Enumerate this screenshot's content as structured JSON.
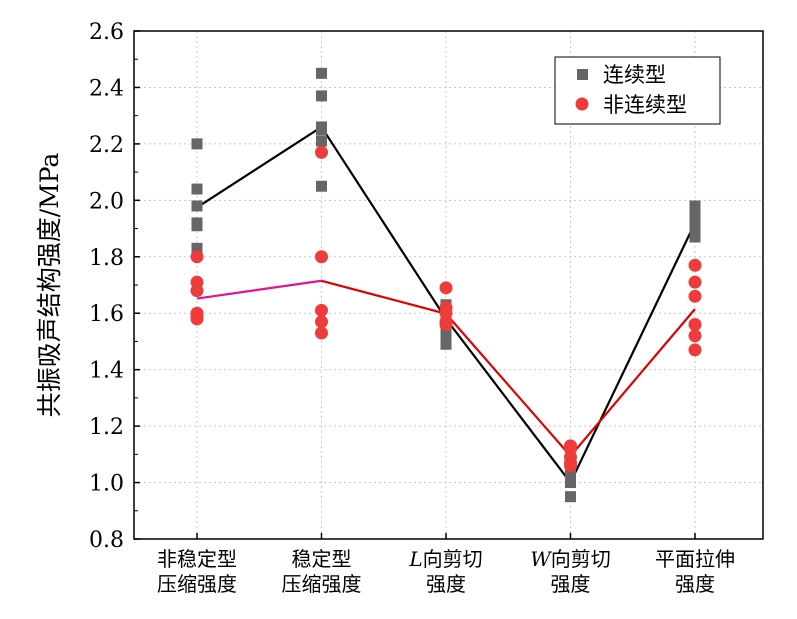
{
  "chart_data": {
    "type": "scatter",
    "ylabel": "共振吸声结构强度/MPa",
    "xlabel": "",
    "ylim": [
      0.8,
      2.6
    ],
    "yticks": [
      "0.8",
      "1.0",
      "1.2",
      "1.4",
      "1.6",
      "1.8",
      "2.0",
      "2.2",
      "2.4",
      "2.6"
    ],
    "categories": [
      {
        "lines": [
          "非稳定型",
          "压缩强度"
        ],
        "italic_prefix": ""
      },
      {
        "lines": [
          "稳定型",
          "压缩强度"
        ],
        "italic_prefix": ""
      },
      {
        "lines": [
          "向剪切",
          "强度"
        ],
        "italic_prefix": "L"
      },
      {
        "lines": [
          "向剪切",
          "强度"
        ],
        "italic_prefix": "W"
      },
      {
        "lines": [
          "平面拉伸",
          "强度"
        ],
        "italic_prefix": ""
      }
    ],
    "grid": true,
    "legend_position": "top-right",
    "series": [
      {
        "name": "连续型",
        "marker": "square",
        "marker_color": "#666666",
        "line_color": "#000000",
        "points": [
          [
            2.2,
            2.04,
            1.98,
            1.92,
            1.91,
            1.83
          ],
          [
            2.45,
            2.37,
            2.26,
            2.25,
            2.21,
            2.05
          ],
          [
            1.63,
            1.61,
            1.58,
            1.54,
            1.52,
            1.49
          ],
          [
            1.05,
            1.03,
            1.0,
            0.95
          ],
          [
            1.98,
            1.96,
            1.93,
            1.9,
            1.87
          ]
        ],
        "mean_line": [
          1.975,
          2.26,
          1.58,
          1.0,
          1.92
        ]
      },
      {
        "name": "非连续型",
        "marker": "circle",
        "marker_color": "#ee3b3b",
        "line_color": "#e00000",
        "first_segment_color": "#e0148c",
        "points": [
          [
            1.8,
            1.71,
            1.68,
            1.6,
            1.59,
            1.58
          ],
          [
            2.17,
            1.8,
            1.61,
            1.57,
            1.53
          ],
          [
            1.69,
            1.62,
            1.6,
            1.57,
            1.56
          ],
          [
            1.13,
            1.12,
            1.09,
            1.07,
            1.06
          ],
          [
            1.77,
            1.71,
            1.66,
            1.56,
            1.52,
            1.47
          ]
        ],
        "mean_line": [
          1.652,
          1.715,
          1.598,
          1.094,
          1.615
        ]
      }
    ]
  }
}
